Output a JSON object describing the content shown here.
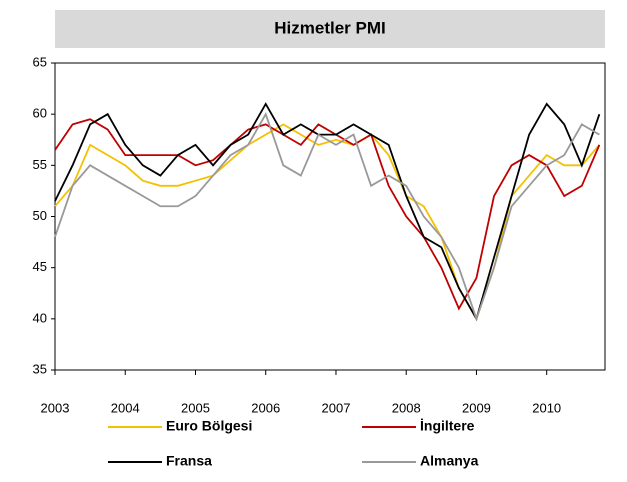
{
  "chart_data": {
    "type": "line",
    "title": "Hizmetler PMI",
    "x": [
      2003,
      2003.25,
      2003.5,
      2003.75,
      2004,
      2004.25,
      2004.5,
      2004.75,
      2005,
      2005.25,
      2005.5,
      2005.75,
      2006,
      2006.25,
      2006.5,
      2006.75,
      2007,
      2007.25,
      2007.5,
      2007.75,
      2008,
      2008.25,
      2008.5,
      2008.75,
      2009,
      2009.25,
      2009.5,
      2009.75,
      2010,
      2010.25,
      2010.5,
      2010.75
    ],
    "series": [
      {
        "name": "Euro Bölgesi",
        "color": "#f5c000",
        "values": [
          51,
          53,
          57,
          56,
          55,
          53.5,
          53,
          53,
          53.5,
          54,
          55.5,
          57,
          58,
          59,
          58,
          57,
          57.5,
          57,
          58,
          56,
          52,
          51,
          48,
          43,
          40,
          45,
          52,
          54,
          56,
          55,
          55,
          57
        ]
      },
      {
        "name": "İngiltere",
        "color": "#c00000",
        "values": [
          56.5,
          59,
          59.5,
          58.5,
          56,
          56,
          56,
          56,
          55,
          55.5,
          57,
          58.5,
          59,
          58,
          57,
          59,
          58,
          57,
          58,
          53,
          50,
          48,
          45,
          41,
          44,
          52,
          55,
          56,
          55,
          52,
          53,
          57
        ]
      },
      {
        "name": "Fransa",
        "color": "#000000",
        "values": [
          51.5,
          55,
          59,
          60,
          57,
          55,
          54,
          56,
          57,
          55,
          57,
          58,
          61,
          58,
          59,
          58,
          58,
          59,
          58,
          57,
          52,
          48,
          47,
          43,
          40,
          46,
          52,
          58,
          61,
          59,
          55,
          60
        ]
      },
      {
        "name": "Almanya",
        "color": "#999999",
        "values": [
          48,
          53,
          55,
          54,
          53,
          52,
          51,
          51,
          52,
          54,
          56,
          57,
          60,
          55,
          54,
          58,
          57,
          58,
          53,
          54,
          53,
          50,
          48,
          45,
          40,
          45,
          51,
          53,
          55,
          56,
          59,
          58
        ]
      }
    ],
    "xlim": [
      2003,
      2010.83
    ],
    "xticks": [
      2003,
      2004,
      2005,
      2006,
      2007,
      2008,
      2009,
      2010
    ],
    "ylim": [
      35,
      65
    ],
    "yticks": [
      35,
      40,
      45,
      50,
      55,
      60,
      65
    ],
    "grid": false
  }
}
